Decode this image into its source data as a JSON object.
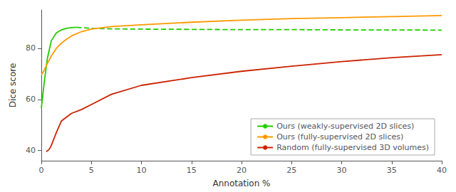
{
  "chart_data": {
    "type": "line",
    "xlabel": "Annotation %",
    "ylabel": "Dice score",
    "xlim": [
      0,
      40
    ],
    "ylim": [
      36,
      95
    ],
    "xticks": [
      0,
      5,
      10,
      15,
      20,
      25,
      30,
      35,
      40
    ],
    "yticks": [
      40,
      60,
      80
    ],
    "grid": false,
    "legend": "lower right",
    "series": [
      {
        "name": "Ours (weakly-supervised 2D slices)",
        "color": "#22cc00",
        "line_style": "solid",
        "x": [
          0.0,
          0.3,
          0.6,
          1.0,
          1.5,
          2.0,
          2.5,
          3.0,
          3.5
        ],
        "values": [
          56.5,
          67.0,
          76.0,
          83.0,
          86.0,
          87.2,
          87.8,
          88.1,
          88.2
        ]
      },
      {
        "name": "Ours (weakly-supervised 2D slices)",
        "color": "#22cc00",
        "line_style": "dashed",
        "x": [
          3.5,
          5.0,
          7.0,
          10.0,
          15.0,
          20.0,
          25.0,
          30.0,
          35.0,
          40.0
        ],
        "values": [
          88.2,
          87.8,
          87.6,
          87.5,
          87.4,
          87.3,
          87.3,
          87.2,
          87.2,
          87.1
        ]
      },
      {
        "name": "Ours (fully-supervised 2D slices)",
        "color": "#ff9900",
        "line_style": "solid",
        "x": [
          0.0,
          0.3,
          0.6,
          1.0,
          1.5,
          2.0,
          2.5,
          3.0,
          4.0,
          5.0,
          7.0,
          10.0,
          15.0,
          20.0,
          25.0,
          30.0,
          35.0,
          40.0
        ],
        "values": [
          69.5,
          71.5,
          74.0,
          77.0,
          80.0,
          82.0,
          83.5,
          84.8,
          86.5,
          87.5,
          88.5,
          89.2,
          90.2,
          91.0,
          91.6,
          92.0,
          92.4,
          92.8
        ]
      },
      {
        "name": "Random (fully-supervised 3D volumes)",
        "color": "#cc2200",
        "line_style": "solid",
        "x": [
          0.5,
          0.8,
          1.0,
          1.5,
          2.0,
          3.0,
          4.0,
          5.0,
          7.0,
          10.0,
          15.0,
          20.0,
          25.0,
          30.0,
          35.0,
          40.0
        ],
        "values": [
          39.5,
          40.5,
          42.0,
          47.0,
          51.5,
          54.5,
          56.0,
          58.0,
          62.0,
          65.5,
          68.5,
          71.0,
          73.0,
          74.8,
          76.3,
          77.5
        ]
      }
    ]
  }
}
